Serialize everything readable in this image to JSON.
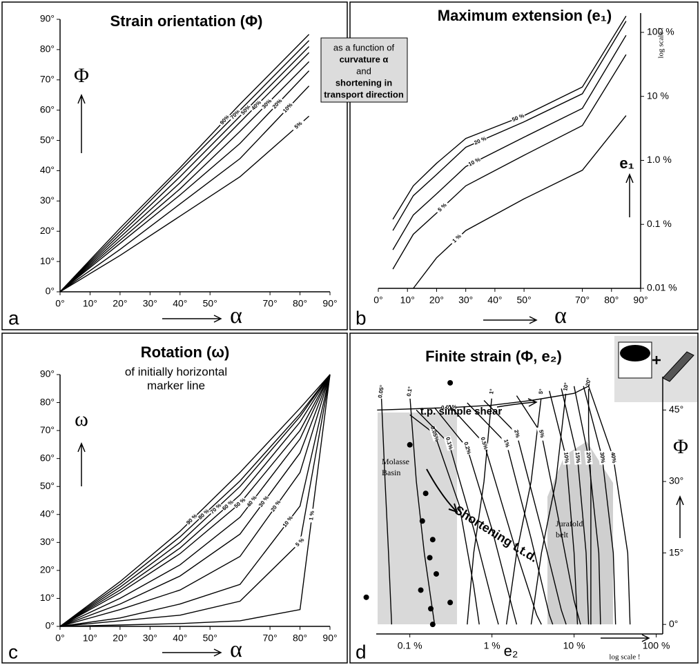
{
  "chart_data": [
    {
      "type": "line",
      "panel": "a",
      "title": "Strain orientation (Φ)",
      "x_label": "α",
      "y_label": "Φ",
      "color": "#000000",
      "xlim": [
        0,
        90
      ],
      "ylim": [
        0,
        90
      ],
      "xticks": [
        {
          "value": 0,
          "label": "0°"
        },
        {
          "value": 10,
          "label": "10°"
        },
        {
          "value": 20,
          "label": "20°"
        },
        {
          "value": 30,
          "label": "30°"
        },
        {
          "value": 40,
          "label": "40°"
        },
        {
          "value": 50,
          "label": "50°"
        },
        {
          "value": 70,
          "label": "70°"
        },
        {
          "value": 80,
          "label": "80°"
        },
        {
          "value": 90,
          "label": "90°"
        }
      ],
      "yticks": [
        {
          "value": 0,
          "label": "0°"
        },
        {
          "value": 10,
          "label": "10°"
        },
        {
          "value": 20,
          "label": "20°"
        },
        {
          "value": 30,
          "label": "30°"
        },
        {
          "value": 40,
          "label": "40°"
        },
        {
          "value": 50,
          "label": "50°"
        },
        {
          "value": 60,
          "label": "60°"
        },
        {
          "value": 70,
          "label": "70°"
        },
        {
          "value": 80,
          "label": "80°"
        },
        {
          "value": 90,
          "label": "90°"
        }
      ],
      "x": [
        0,
        20,
        40,
        60,
        83
      ],
      "series": [
        {
          "name": "90%",
          "values": [
            0,
            21,
            41,
            62,
            85
          ]
        },
        {
          "name": "70%",
          "values": [
            0,
            20,
            40,
            60,
            83
          ]
        },
        {
          "name": "50%",
          "values": [
            0,
            19,
            38,
            58,
            81
          ]
        },
        {
          "name": "40%",
          "values": [
            0,
            18,
            36,
            56,
            79
          ]
        },
        {
          "name": "30%",
          "values": [
            0,
            17,
            34,
            53,
            76
          ]
        },
        {
          "name": "20%",
          "values": [
            0,
            16,
            32,
            49,
            73
          ]
        },
        {
          "name": "10%",
          "values": [
            0,
            14,
            29,
            44,
            68
          ]
        },
        {
          "name": "5%",
          "values": [
            0,
            12,
            25,
            38,
            58
          ]
        }
      ],
      "caption_box": [
        "as a function of",
        "curvature α",
        "and",
        "shortening in",
        "transport direction"
      ]
    },
    {
      "type": "line",
      "panel": "b",
      "title": "Maximum extension (e₁)",
      "x_label": "α",
      "y_label": "e₁",
      "log_note": "log scale !",
      "color": "#000000",
      "xlim": [
        0,
        90
      ],
      "ylim": [
        0.01,
        200
      ],
      "y_log": true,
      "xticks": [
        {
          "value": 0,
          "label": "0°"
        },
        {
          "value": 10,
          "label": "10°"
        },
        {
          "value": 20,
          "label": "20°"
        },
        {
          "value": 30,
          "label": "30°"
        },
        {
          "value": 40,
          "label": "40°"
        },
        {
          "value": 50,
          "label": "50°"
        },
        {
          "value": 70,
          "label": "70°"
        },
        {
          "value": 80,
          "label": "80°"
        },
        {
          "value": 90,
          "label": "90°"
        }
      ],
      "yticks": [
        {
          "value": 0.01,
          "label": "0.01 %"
        },
        {
          "value": 0.1,
          "label": "0.1 %"
        },
        {
          "value": 1,
          "label": "1.0 %"
        },
        {
          "value": 10,
          "label": "10 %"
        },
        {
          "value": 100,
          "label": "100 %"
        }
      ],
      "x": [
        5,
        12,
        20,
        30,
        50,
        70,
        85
      ],
      "series": [
        {
          "name": "50 %",
          "values": [
            0.12,
            0.4,
            0.9,
            2.2,
            5,
            14,
            180
          ]
        },
        {
          "name": "20 %",
          "values": [
            0.08,
            0.28,
            0.6,
            1.6,
            4,
            11,
            150
          ]
        },
        {
          "name": "10 %",
          "values": [
            0.04,
            0.14,
            0.3,
            0.8,
            2.3,
            6.5,
            90
          ]
        },
        {
          "name": "5 %",
          "values": [
            0.02,
            0.07,
            0.15,
            0.4,
            1.2,
            3.5,
            45
          ]
        },
        {
          "name": "1 %",
          "values": [
            null,
            0.01,
            0.03,
            0.08,
            0.25,
            0.7,
            5
          ]
        }
      ]
    },
    {
      "type": "line",
      "panel": "c",
      "title": "Rotation (ω)",
      "subtitle": [
        "of initially horizontal",
        "marker line"
      ],
      "x_label": "α",
      "y_label": "ω",
      "color": "#000000",
      "xlim": [
        0,
        90
      ],
      "ylim": [
        0,
        90
      ],
      "xticks": [
        {
          "value": 0,
          "label": "0°"
        },
        {
          "value": 10,
          "label": "10°"
        },
        {
          "value": 20,
          "label": "20°"
        },
        {
          "value": 30,
          "label": "30°"
        },
        {
          "value": 40,
          "label": "40°"
        },
        {
          "value": 50,
          "label": "50°"
        },
        {
          "value": 70,
          "label": "70°"
        },
        {
          "value": 80,
          "label": "80°"
        },
        {
          "value": 90,
          "label": "90°"
        }
      ],
      "yticks": [
        {
          "value": 0,
          "label": "0°"
        },
        {
          "value": 10,
          "label": "10°"
        },
        {
          "value": 20,
          "label": "20°"
        },
        {
          "value": 30,
          "label": "30°"
        },
        {
          "value": 40,
          "label": "40°"
        },
        {
          "value": 50,
          "label": "50°"
        },
        {
          "value": 60,
          "label": "60°"
        },
        {
          "value": 70,
          "label": "70°"
        },
        {
          "value": 80,
          "label": "80°"
        },
        {
          "value": 90,
          "label": "90°"
        }
      ],
      "x": [
        0,
        20,
        40,
        60,
        80,
        90
      ],
      "series": [
        {
          "name": "90 %",
          "values": [
            0,
            16,
            34,
            55,
            78,
            90
          ]
        },
        {
          "name": "80 %",
          "values": [
            0,
            15,
            32,
            52,
            76,
            90
          ]
        },
        {
          "name": "70 %",
          "values": [
            0,
            14,
            30,
            50,
            75,
            90
          ]
        },
        {
          "name": "60 %",
          "values": [
            0,
            13,
            28,
            47,
            73,
            90
          ]
        },
        {
          "name": "50 %",
          "values": [
            0,
            12,
            26,
            44,
            70,
            90
          ]
        },
        {
          "name": "40 %",
          "values": [
            0,
            10,
            22,
            39,
            67,
            90
          ]
        },
        {
          "name": "30 %",
          "values": [
            0,
            8,
            18,
            33,
            62,
            90
          ]
        },
        {
          "name": "20 %",
          "values": [
            0,
            6,
            13,
            25,
            55,
            90
          ]
        },
        {
          "name": "10 %",
          "values": [
            0,
            3,
            8,
            15,
            43,
            90
          ]
        },
        {
          "name": "5 %",
          "values": [
            0,
            2,
            4,
            9,
            30,
            90
          ]
        },
        {
          "name": "1 %",
          "values": [
            0,
            0.5,
            1,
            2,
            6,
            90
          ]
        }
      ]
    },
    {
      "type": "line",
      "panel": "d",
      "title": "Finite strain (Φ, e₂)",
      "x_label": "e₂",
      "y_label": "Φ",
      "log_note": "log scale !",
      "color": "#000000",
      "xlim": [
        0.039,
        120
      ],
      "x_log": true,
      "ylim": [
        -2,
        52
      ],
      "xticks": [
        {
          "value": 0.1,
          "label": "0.1 %"
        },
        {
          "value": 1,
          "label": "1 %"
        },
        {
          "value": 10,
          "label": "10 %"
        },
        {
          "value": 100,
          "label": "100 %"
        }
      ],
      "yticks": [
        {
          "value": 0,
          "label": "0°"
        },
        {
          "value": 15,
          "label": "15°"
        },
        {
          "value": 30,
          "label": "30°"
        },
        {
          "value": 45,
          "label": "45°"
        }
      ],
      "series": [
        {
          "name": "0.05°",
          "x": [
            0.045,
            0.05,
            0.055,
            0.06
          ],
          "values": [
            48,
            30,
            15,
            0
          ]
        },
        {
          "name": "0.1°",
          "x": [
            0.1,
            0.12,
            0.15,
            0.2
          ],
          "values": [
            48,
            30,
            15,
            0
          ]
        },
        {
          "name": "1°",
          "x": [
            1,
            0.8,
            0.6,
            0.5
          ],
          "values": [
            48,
            30,
            15,
            0
          ]
        },
        {
          "name": "5°",
          "x": [
            4,
            3,
            2,
            1.5
          ],
          "values": [
            48,
            30,
            15,
            0
          ]
        },
        {
          "name": "10°",
          "x": [
            8,
            6,
            4,
            3
          ],
          "values": [
            49,
            30,
            15,
            0
          ]
        },
        {
          "name": "20°",
          "x": [
            15,
            15,
            16,
            16
          ],
          "values": [
            50,
            40,
            30,
            0
          ]
        },
        {
          "name": "0.01%",
          "x": [
            0.04,
            0.3,
            1,
            3,
            10,
            15
          ],
          "values": [
            45,
            45.5,
            46,
            47,
            48.5,
            50
          ]
        },
        {
          "name": "0.05%",
          "x": [
            0.1,
            0.2,
            0.4,
            0.6,
            0.7
          ],
          "values": [
            44,
            40,
            25,
            8,
            0
          ]
        },
        {
          "name": "0.1%",
          "x": [
            0.12,
            0.3,
            0.6,
            1,
            1.2
          ],
          "values": [
            45,
            38,
            20,
            5,
            0
          ]
        },
        {
          "name": "0.2%",
          "x": [
            0.2,
            0.5,
            1,
            1.8,
            2
          ],
          "values": [
            45.5,
            37,
            20,
            3,
            0
          ]
        },
        {
          "name": "0.5%",
          "x": [
            0.3,
            0.8,
            2,
            3.5,
            4
          ],
          "values": [
            46,
            38,
            15,
            2,
            0
          ]
        },
        {
          "name": "1%",
          "x": [
            0.5,
            1.5,
            3,
            5,
            5.5
          ],
          "values": [
            46.5,
            38,
            18,
            2,
            0
          ]
        },
        {
          "name": "2%",
          "x": [
            0.8,
            2,
            4,
            7,
            8
          ],
          "values": [
            47,
            40,
            20,
            3,
            0
          ]
        },
        {
          "name": "5%",
          "x": [
            2,
            4,
            6,
            10,
            12
          ],
          "values": [
            48,
            40,
            25,
            5,
            0
          ]
        },
        {
          "name": "10%",
          "x": [
            5,
            8,
            10,
            11
          ],
          "values": [
            49,
            35,
            15,
            0
          ]
        },
        {
          "name": "15%",
          "x": [
            7,
            11,
            14,
            15
          ],
          "values": [
            49.5,
            35,
            15,
            0
          ]
        },
        {
          "name": "20%",
          "x": [
            10,
            15,
            20,
            21
          ],
          "values": [
            50,
            35,
            15,
            0
          ]
        },
        {
          "name": "30%",
          "x": [
            13,
            22,
            30,
            32
          ],
          "values": [
            50,
            35,
            15,
            0
          ]
        },
        {
          "name": "40%",
          "x": [
            15,
            30,
            45,
            48
          ],
          "values": [
            50,
            35,
            15,
            0
          ]
        }
      ],
      "points": {
        "x": [
          0.0295,
          0.1,
          0.31,
          0.156,
          0.142,
          0.19,
          0.175,
          0.21,
          0.136,
          0.18,
          0.31,
          0.19
        ],
        "values": [
          5.7,
          37.7,
          50.7,
          27.5,
          21.7,
          17.8,
          14,
          10.6,
          7.2,
          3.3,
          4.6,
          0
        ]
      },
      "annotations": [
        "t.p. simple shear",
        "Shortening t.t.d."
      ],
      "regions": [
        [
          "Molasse",
          "Basin"
        ],
        [
          "Jurafold",
          "belt"
        ]
      ]
    }
  ]
}
